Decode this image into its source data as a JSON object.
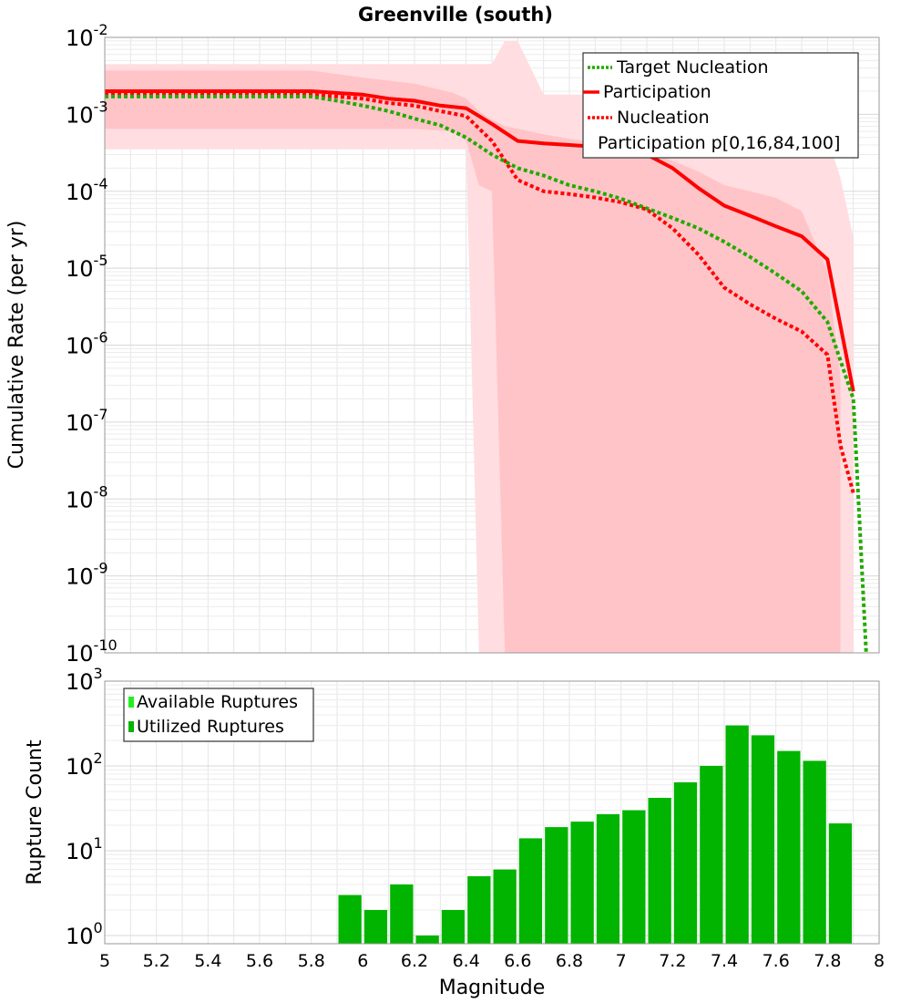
{
  "figure": {
    "title": "Greenville (south)",
    "xlabel": "Magnitude"
  },
  "chart_data": [
    {
      "type": "line",
      "title": "Greenville (south)",
      "xlabel": "",
      "ylabel": "Cumulative Rate (per yr)",
      "yscale": "log",
      "xlim": [
        5,
        8
      ],
      "ylim": [
        1e-10,
        0.01
      ],
      "grid": true,
      "legend_position": "top-right",
      "series": [
        {
          "name": "Target Nucleation",
          "style": "dotted",
          "color": "#22aa00",
          "x": [
            5.0,
            5.1,
            5.2,
            5.3,
            5.4,
            5.5,
            5.6,
            5.7,
            5.8,
            5.9,
            6.0,
            6.1,
            6.2,
            6.3,
            6.4,
            6.5,
            6.6,
            6.7,
            6.8,
            6.9,
            7.0,
            7.1,
            7.2,
            7.3,
            7.4,
            7.5,
            7.6,
            7.7,
            7.8,
            7.9,
            7.95
          ],
          "y": [
            0.0017,
            0.0017,
            0.0017,
            0.0017,
            0.0017,
            0.0017,
            0.0017,
            0.0017,
            0.0017,
            0.0015,
            0.0013,
            0.0011,
            0.00088,
            0.00072,
            0.0005,
            0.0003,
            0.0002,
            0.00016,
            0.00012,
            0.0001,
            8e-05,
            6e-05,
            4.5e-05,
            3.3e-05,
            2.2e-05,
            1.4e-05,
            8.5e-06,
            5e-06,
            2e-06,
            2e-07,
            1e-10
          ]
        },
        {
          "name": "Participation",
          "style": "solid",
          "color": "#ff0000",
          "x": [
            5.0,
            5.8,
            6.0,
            6.1,
            6.2,
            6.3,
            6.4,
            6.5,
            6.6,
            6.7,
            6.8,
            6.9,
            7.0,
            7.1,
            7.2,
            7.3,
            7.4,
            7.5,
            7.6,
            7.7,
            7.8,
            7.9
          ],
          "y": [
            0.002,
            0.002,
            0.0018,
            0.0016,
            0.0015,
            0.0013,
            0.0012,
            0.00075,
            0.00045,
            0.00042,
            0.0004,
            0.00038,
            0.00034,
            0.0003,
            0.0002,
            0.00011,
            6.5e-05,
            4.8e-05,
            3.5e-05,
            2.6e-05,
            1.3e-05,
            2.5e-07
          ]
        },
        {
          "name": "Nucleation",
          "style": "dotted",
          "color": "#ff0000",
          "x": [
            5.0,
            5.8,
            5.9,
            6.0,
            6.1,
            6.2,
            6.3,
            6.4,
            6.5,
            6.6,
            6.7,
            6.8,
            6.9,
            7.0,
            7.1,
            7.2,
            7.3,
            7.4,
            7.5,
            7.6,
            7.7,
            7.8,
            7.85,
            7.9
          ],
          "y": [
            0.0018,
            0.0018,
            0.0017,
            0.0016,
            0.0014,
            0.0013,
            0.0011,
            0.00095,
            0.00045,
            0.00014,
            0.0001,
            9.2e-05,
            8.3e-05,
            7.2e-05,
            5.8e-05,
            3.3e-05,
            1.5e-05,
            5.6e-06,
            3.4e-06,
            2.2e-06,
            1.5e-06,
            7.5e-07,
            5e-08,
            1.2e-08
          ]
        }
      ],
      "bands": [
        {
          "name": "Participation p[0,16,84,100]",
          "range": "p0-p100",
          "color": "#ffdde0",
          "x": [
            5.0,
            5.8,
            6.0,
            6.4,
            6.45,
            6.5,
            6.55,
            6.6,
            6.7,
            6.8,
            6.9,
            7.0,
            7.1,
            7.2,
            7.3,
            7.4,
            7.5,
            7.6,
            7.7,
            7.8,
            7.85,
            7.9
          ],
          "upper": [
            0.0045,
            0.0045,
            0.0045,
            0.0045,
            0.0045,
            0.0045,
            0.009,
            0.009,
            0.0018,
            0.0018,
            0.0018,
            0.0018,
            0.0015,
            0.0011,
            0.0009,
            0.0009,
            0.0009,
            0.0009,
            0.0009,
            0.0005,
            0.00015,
            2.5e-05
          ],
          "lower": [
            0.00035,
            0.00035,
            0.00035,
            0.00035,
            1e-10,
            1e-10,
            1e-10,
            1e-10,
            1e-10,
            1e-10,
            1e-10,
            1e-10,
            1e-10,
            1e-10,
            1e-10,
            1e-10,
            1e-10,
            1e-10,
            1e-10,
            1e-10,
            1e-10,
            1e-10
          ]
        },
        {
          "name": "Participation p[0,16,84,100]",
          "range": "p16-p84",
          "color": "#ffc4c8",
          "x": [
            5.0,
            5.8,
            6.0,
            6.2,
            6.35,
            6.4,
            6.45,
            6.5,
            6.55,
            6.6,
            6.7,
            6.8,
            6.9,
            7.0,
            7.1,
            7.2,
            7.3,
            7.4,
            7.5,
            7.6,
            7.7,
            7.8,
            7.85
          ],
          "upper": [
            0.0037,
            0.0037,
            0.003,
            0.0025,
            0.0019,
            0.0016,
            0.0011,
            0.00085,
            0.0007,
            0.00065,
            0.00055,
            0.00048,
            0.00043,
            0.00038,
            0.00033,
            0.00025,
            0.00018,
            0.00012,
            0.0001,
            8.2e-05,
            5.5e-05,
            9e-06,
            4e-07
          ],
          "lower": [
            0.00065,
            0.00065,
            0.00065,
            0.00065,
            0.0006,
            0.00045,
            0.00012,
            0.0001,
            1e-10,
            1e-10,
            1e-10,
            1e-10,
            1e-10,
            1e-10,
            1e-10,
            1e-10,
            1e-10,
            1e-10,
            1e-10,
            1e-10,
            1e-10,
            1e-10,
            1e-10
          ]
        }
      ],
      "legend": [
        "Target Nucleation",
        "Participation",
        "Nucleation",
        "Participation p[0,16,84,100]"
      ]
    },
    {
      "type": "bar",
      "title": "",
      "xlabel": "Magnitude",
      "ylabel": "Rupture Count",
      "yscale": "log",
      "xlim": [
        5,
        8
      ],
      "ylim": [
        0.8,
        1000
      ],
      "grid": true,
      "legend_position": "top-left",
      "legend": [
        "Available Ruptures",
        "Utilized Ruptures"
      ],
      "colors": {
        "available": "#22ee22",
        "utilized": "#00b400"
      },
      "bin_width": 0.1,
      "x": [
        5.95,
        6.05,
        6.15,
        6.25,
        6.35,
        6.45,
        6.55,
        6.65,
        6.75,
        6.85,
        6.95,
        7.05,
        7.15,
        7.25,
        7.35,
        7.45,
        7.55,
        7.65,
        7.75,
        7.85
      ],
      "values": [
        3,
        2,
        4,
        1,
        2,
        5,
        6,
        14,
        19,
        22,
        27,
        30,
        42,
        64,
        100,
        300,
        230,
        150,
        115,
        21
      ]
    }
  ],
  "axes": {
    "top_y_ticks": [
      {
        "base": "10",
        "exp": "-2",
        "value": 0.01
      },
      {
        "base": "10",
        "exp": "-3",
        "value": 0.001
      },
      {
        "base": "10",
        "exp": "-4",
        "value": 0.0001
      },
      {
        "base": "10",
        "exp": "-5",
        "value": 1e-05
      },
      {
        "base": "10",
        "exp": "-6",
        "value": 1e-06
      },
      {
        "base": "10",
        "exp": "-7",
        "value": 1e-07
      },
      {
        "base": "10",
        "exp": "-8",
        "value": 1e-08
      },
      {
        "base": "10",
        "exp": "-9",
        "value": 1e-09
      },
      {
        "base": "10",
        "exp": "-10",
        "value": 1e-10
      }
    ],
    "bottom_y_ticks": [
      {
        "base": "10",
        "exp": "3",
        "value": 1000
      },
      {
        "base": "10",
        "exp": "2",
        "value": 100
      },
      {
        "base": "10",
        "exp": "1",
        "value": 10
      },
      {
        "base": "10",
        "exp": "0",
        "value": 1
      }
    ],
    "x_ticks": [
      "5",
      "5.2",
      "5.4",
      "5.6",
      "5.8",
      "6",
      "6.2",
      "6.4",
      "6.6",
      "6.8",
      "7",
      "7.2",
      "7.4",
      "7.6",
      "7.8",
      "8"
    ]
  }
}
